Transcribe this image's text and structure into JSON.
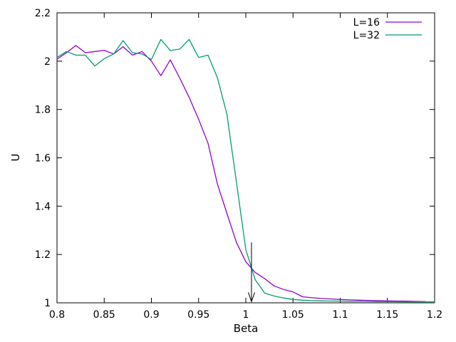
{
  "figure": {
    "background": "#ffffff",
    "axis_color": "#000000",
    "text_color": "#000000"
  },
  "chart_data": {
    "type": "line",
    "title": "",
    "xlabel": "Beta",
    "ylabel": "U",
    "xlim": [
      0.8,
      1.2
    ],
    "ylim": [
      1.0,
      2.2
    ],
    "grid": false,
    "legend_position": "top-right-inside",
    "x_ticks": {
      "values": [
        0.8,
        0.85,
        0.9,
        0.95,
        1.0,
        1.05,
        1.1,
        1.15,
        1.2
      ],
      "labels": [
        "0.8",
        "0.85",
        "0.9",
        "0.95",
        "1",
        "1.05",
        "1.1",
        "1.15",
        "1.2"
      ]
    },
    "y_ticks": {
      "values": [
        1.0,
        1.2,
        1.4,
        1.6,
        1.8,
        2.0,
        2.2
      ],
      "labels": [
        "1",
        "1.2",
        "1.4",
        "1.6",
        "1.8",
        "2",
        "2.2"
      ]
    },
    "series": [
      {
        "name": "L=16",
        "color": "#9400d3",
        "x": [
          0.8,
          0.81,
          0.82,
          0.83,
          0.84,
          0.85,
          0.86,
          0.87,
          0.88,
          0.89,
          0.9,
          0.91,
          0.92,
          0.93,
          0.94,
          0.95,
          0.96,
          0.97,
          0.98,
          0.99,
          1.0,
          1.01,
          1.02,
          1.03,
          1.04,
          1.05,
          1.06,
          1.07,
          1.08,
          1.09,
          1.1,
          1.11,
          1.12,
          1.13,
          1.14,
          1.15,
          1.16,
          1.17,
          1.18,
          1.19
        ],
        "y": [
          2.008,
          2.035,
          2.065,
          2.035,
          2.04,
          2.045,
          2.03,
          2.06,
          2.025,
          2.04,
          2.0,
          1.94,
          2.005,
          1.93,
          1.85,
          1.76,
          1.66,
          1.49,
          1.37,
          1.25,
          1.17,
          1.125,
          1.1,
          1.07,
          1.055,
          1.045,
          1.025,
          1.021,
          1.018,
          1.016,
          1.014,
          1.012,
          1.011,
          1.01,
          1.009,
          1.008,
          1.0075,
          1.007,
          1.006,
          1.005
        ]
      },
      {
        "name": "L=32",
        "color": "#009e73",
        "x": [
          0.8,
          0.81,
          0.82,
          0.83,
          0.84,
          0.85,
          0.86,
          0.87,
          0.88,
          0.89,
          0.9,
          0.91,
          0.92,
          0.93,
          0.94,
          0.95,
          0.96,
          0.97,
          0.98,
          0.99,
          1.0,
          1.01,
          1.02,
          1.03,
          1.04,
          1.05,
          1.06,
          1.07,
          1.08,
          1.09,
          1.1,
          1.11,
          1.12,
          1.13,
          1.14,
          1.15,
          1.16,
          1.17,
          1.18,
          1.19,
          1.2
        ],
        "y": [
          2.015,
          2.04,
          2.025,
          2.025,
          1.98,
          2.01,
          2.03,
          2.085,
          2.035,
          2.03,
          2.007,
          2.09,
          2.044,
          2.05,
          2.09,
          2.015,
          2.025,
          1.93,
          1.78,
          1.5,
          1.22,
          1.095,
          1.04,
          1.028,
          1.02,
          1.014,
          1.011,
          1.009,
          1.008,
          1.0075,
          1.007,
          1.006,
          1.006,
          1.0055,
          1.005,
          1.005,
          1.0045,
          1.004,
          1.004,
          1.004,
          1.004
        ]
      }
    ],
    "annotations": [
      {
        "type": "arrow",
        "direction": "down",
        "x": 1.006,
        "y_from": 1.25,
        "y_to": 1.005,
        "color": "#000000"
      }
    ]
  }
}
